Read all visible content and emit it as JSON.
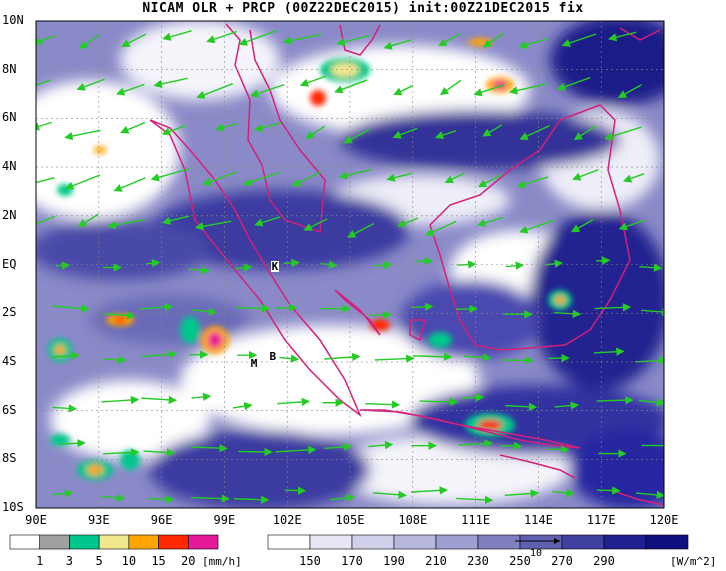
{
  "title": "NICAM OLR + PRCP (00Z22DEC2015) init:00Z21DEC2015 fix",
  "map": {
    "lat_labels": [
      "10N",
      "8N",
      "6N",
      "4N",
      "2N",
      "EQ",
      "2S",
      "4S",
      "6S",
      "8S",
      "10S"
    ],
    "lon_labels": [
      "90E",
      "93E",
      "96E",
      "99E",
      "102E",
      "105E",
      "108E",
      "111E",
      "114E",
      "117E",
      "120E"
    ],
    "markers": [
      {
        "label": "K",
        "lon": 101.4,
        "lat": -0.1
      },
      {
        "label": "M",
        "lon": 100.4,
        "lat": -4.1
      },
      {
        "label": "B",
        "lon": 101.3,
        "lat": -3.8
      }
    ],
    "wind_reference_label": "10"
  },
  "precip_scale": {
    "ticks": [
      "1",
      "3",
      "5",
      "10",
      "15",
      "20"
    ],
    "unit": "[mm/h]",
    "colors": [
      "#ffffff",
      "#a0a0a0",
      "#00c88c",
      "#f0e68c",
      "#ffa500",
      "#ff2800",
      "#e6199b"
    ]
  },
  "olr_scale": {
    "ticks": [
      "150",
      "170",
      "190",
      "210",
      "230",
      "250",
      "270",
      "290"
    ],
    "unit": "[W/m^2]",
    "colors": [
      "#ffffff",
      "#e6e6f5",
      "#d0d0ea",
      "#b8b8dd",
      "#9e9ed0",
      "#8080c0",
      "#6060b0",
      "#4040a0",
      "#202090",
      "#101080"
    ]
  },
  "colors": {
    "coast": "#d4207a",
    "wind": "#22cc22",
    "cloud_dark": "#222288"
  }
}
